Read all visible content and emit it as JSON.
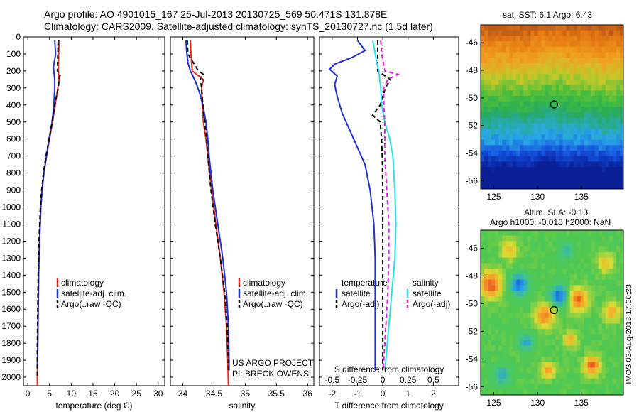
{
  "header": {
    "line1": "Argo profile: AO 4901015_167 25-Jul-2013 20130725_569 50.471S 131.878E",
    "line2": "Climatology: CARS2009. Satellite-adjusted climatology: synTS_20130727.nc (1.5d later)"
  },
  "colors": {
    "climatology": "#e8281e",
    "satellite": "#1f2fd6",
    "argo": "#000000",
    "salinity_satellite": "#27e0e8",
    "salinity_argo": "#e020e0"
  },
  "depth_axis": {
    "ticks": [
      0,
      100,
      200,
      300,
      400,
      500,
      600,
      700,
      800,
      900,
      1000,
      1100,
      1200,
      1300,
      1400,
      1500,
      1600,
      1700,
      1800,
      1900,
      2000
    ],
    "range": [
      0,
      2050
    ]
  },
  "chart_data": [
    {
      "type": "line",
      "xlabel": "temperature (deg C)",
      "xlim": [
        -1,
        31.5
      ],
      "xticks": [
        0,
        5,
        10,
        15,
        20,
        25,
        30
      ],
      "ylim": [
        0,
        2050
      ],
      "legend": [
        "climatology",
        "satellite-adj. clim.",
        "Argo(..raw -QC)"
      ],
      "series": [
        {
          "name": "climatology",
          "depth": [
            20,
            100,
            200,
            250,
            300,
            400,
            500,
            600,
            700,
            800,
            900,
            1000,
            1200,
            1400,
            1600,
            1800,
            2000,
            2050
          ],
          "values": [
            7.2,
            7.1,
            7.0,
            7.2,
            6.9,
            6.3,
            5.7,
            5.0,
            4.3,
            3.7,
            3.3,
            3.0,
            2.7,
            2.5,
            2.4,
            2.3,
            2.2,
            2.2
          ]
        },
        {
          "name": "satellite-adj. clim.",
          "depth": [
            20,
            100,
            180,
            250,
            300,
            400,
            500,
            600,
            700,
            800,
            900,
            1000,
            1200,
            1400,
            1600,
            1800,
            1950
          ],
          "values": [
            6.2,
            6.4,
            5.9,
            6.2,
            6.2,
            6.0,
            5.6,
            4.9,
            4.3,
            3.7,
            3.3,
            3.0,
            2.7,
            2.5,
            2.4,
            2.3,
            2.2
          ]
        },
        {
          "name": "Argo(..raw -QC)",
          "depth": [
            20,
            100,
            200,
            220,
            250,
            300,
            400,
            500,
            600,
            700,
            800,
            900,
            1000,
            1200,
            1400,
            1600,
            1800,
            2000
          ],
          "values": [
            7.0,
            6.9,
            6.8,
            7.5,
            7.2,
            7.0,
            6.2,
            5.6,
            4.9,
            4.2,
            3.6,
            3.2,
            2.9,
            2.6,
            2.4,
            2.3,
            2.2,
            2.2
          ]
        }
      ]
    },
    {
      "type": "line",
      "xlabel": "salinity",
      "xlim": [
        33.8,
        36.1
      ],
      "xticks": [
        34,
        34.5,
        35,
        35.5,
        36
      ],
      "ylim": [
        0,
        2050
      ],
      "legend": [
        "climatology",
        "satellite-adj. clim.",
        "Argo(..raw -QC)"
      ],
      "annotation": [
        "US ARGO PROJECT",
        "PI: BRECK OWENS"
      ],
      "series": [
        {
          "name": "climatology",
          "depth": [
            20,
            100,
            200,
            250,
            300,
            400,
            500,
            600,
            700,
            900,
            1100,
            1300,
            1500,
            1700,
            1900,
            2050
          ],
          "values": [
            34.12,
            34.13,
            34.15,
            34.33,
            34.3,
            34.31,
            34.33,
            34.37,
            34.4,
            34.46,
            34.53,
            34.6,
            34.66,
            34.7,
            34.72,
            34.73
          ]
        },
        {
          "name": "satellite-adj. clim.",
          "depth": [
            20,
            80,
            150,
            200,
            260,
            320,
            400,
            500,
            600,
            700,
            900,
            1100,
            1300,
            1500,
            1700,
            1900,
            1960
          ],
          "values": [
            34.05,
            34.06,
            34.08,
            34.12,
            34.2,
            34.26,
            34.32,
            34.37,
            34.4,
            34.42,
            34.48,
            34.56,
            34.64,
            34.7,
            34.73,
            34.74,
            34.74
          ]
        },
        {
          "name": "Argo(..raw -QC)",
          "depth": [
            20,
            100,
            200,
            220,
            240,
            300,
            400,
            500,
            600,
            700,
            900,
            1100,
            1300,
            1500,
            1700,
            1900,
            1960
          ],
          "values": [
            34.07,
            34.08,
            34.25,
            34.33,
            34.28,
            34.3,
            34.32,
            34.35,
            34.38,
            34.4,
            34.45,
            34.52,
            34.6,
            34.67,
            34.71,
            34.73,
            34.73
          ]
        }
      ]
    },
    {
      "type": "line",
      "xlabel": "T difference from climatology",
      "x2label": "S difference from climatology",
      "xlim": [
        -2.5,
        3
      ],
      "xticks": [
        -2,
        -1,
        0,
        1,
        2
      ],
      "x2ticks": [
        "-0.5",
        "-0.25",
        "0",
        "0.25",
        "0.5"
      ],
      "ylim": [
        0,
        2050
      ],
      "legend_groups": [
        {
          "title": "temperature",
          "items": [
            "satellite",
            "Argo(-adj)"
          ]
        },
        {
          "title": "salinity",
          "items": [
            "satellite",
            "Argo(-adj)"
          ]
        }
      ],
      "series": [
        {
          "name": "temperature satellite",
          "depth": [
            20,
            80,
            120,
            160,
            190,
            230,
            280,
            350,
            450,
            550,
            650,
            750,
            900,
            1100,
            1300,
            1500,
            1700,
            1900,
            1960
          ],
          "values": [
            -1.0,
            -0.7,
            -1.2,
            -1.9,
            -2.1,
            -1.8,
            -1.9,
            -1.8,
            -1.6,
            -1.3,
            -1.0,
            -0.7,
            -0.5,
            -0.35,
            -0.3,
            -0.3,
            -0.3,
            -0.3,
            -0.3
          ]
        },
        {
          "name": "temperature Argo(-adj)",
          "depth": [
            20,
            100,
            200,
            250,
            300,
            400,
            460,
            500,
            600,
            700,
            900,
            1100,
            1300,
            1500,
            1700,
            1900,
            1960
          ],
          "values": [
            -0.2,
            -0.2,
            -0.2,
            0.3,
            0.1,
            -0.1,
            -0.4,
            -0.1,
            -0.05,
            -0.02,
            0,
            0,
            0,
            0,
            0,
            0,
            0
          ]
        },
        {
          "name": "salinity satellite",
          "depth": [
            20,
            80,
            150,
            200,
            300,
            400,
            500,
            600,
            700,
            900,
            1100,
            1300,
            1500,
            1700,
            1900,
            1960
          ],
          "values": [
            -0.1,
            -0.08,
            -0.06,
            -0.04,
            -0.02,
            -0.01,
            0.02,
            0.07,
            0.1,
            0.12,
            0.13,
            0.12,
            0.09,
            0.06,
            0.03,
            0.02
          ]
        },
        {
          "name": "salinity Argo(-adj)",
          "depth": [
            20,
            100,
            200,
            220,
            250,
            300,
            400,
            500,
            600,
            700,
            900,
            1100,
            1300,
            1500,
            1700,
            1900,
            1960
          ],
          "values": [
            -0.02,
            -0.01,
            0.02,
            0.15,
            0.05,
            0.01,
            0.01,
            0.02,
            0.02,
            0.02,
            0.04,
            0.06,
            0.06,
            0.05,
            0.03,
            0.01,
            0.0
          ]
        }
      ]
    },
    {
      "type": "heatmap",
      "title": "sat. SST: 6.1  Argo: 6.43",
      "xticks": [
        125,
        130,
        135
      ],
      "yticks": [
        -46,
        -48,
        -50,
        -52,
        -54,
        -56
      ],
      "xlim": [
        123.5,
        139.8
      ],
      "ylim": [
        -56.6,
        -44.7
      ],
      "marker": {
        "lon": 131.878,
        "lat": -50.471
      }
    },
    {
      "type": "heatmap",
      "title": "Altim. SLA: -0.13",
      "subtitle": "Argo h1000: -0.018  h2000: NaN",
      "xticks": [
        125,
        130,
        135
      ],
      "yticks": [
        -46,
        -48,
        -50,
        -52,
        -54,
        -56
      ],
      "xlim": [
        123.5,
        139.8
      ],
      "ylim": [
        -56.6,
        -44.7
      ],
      "marker": {
        "lon": 131.878,
        "lat": -50.471
      }
    }
  ],
  "credit": "IMOS 03-Aug-2013 17:00:23"
}
